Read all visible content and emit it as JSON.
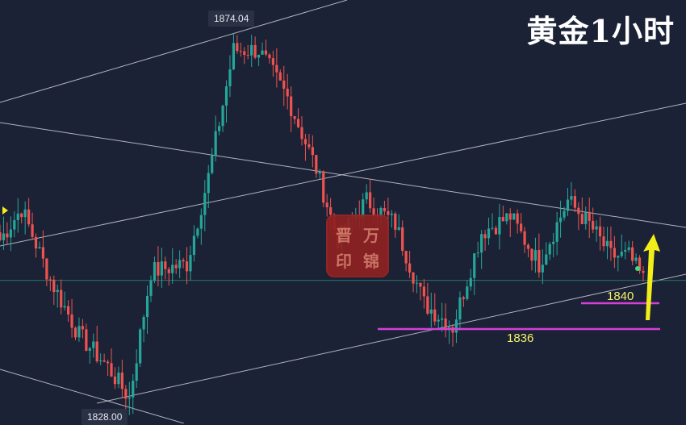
{
  "title": "黄金1小时",
  "labels": {
    "high": "1874.04",
    "low": "1828.00",
    "level_1840": "1840",
    "level_1836": "1836"
  },
  "seal_text": [
    "晋",
    "万",
    "印",
    "锦"
  ],
  "colors": {
    "background": "#1b2235",
    "up": "#26a69a",
    "down": "#ef5350",
    "trendline": "#c9ccd6",
    "support": "#d63fd8",
    "arrow": "#f2ee1a",
    "level_text": "#f4f06a"
  },
  "chart_data": {
    "type": "candlestick",
    "timeframe": "1 hour",
    "ylim": [
      1820,
      1880
    ],
    "candle_count": 180,
    "high_marker": 1874.04,
    "low_marker": 1828.0,
    "horizontal_levels": [
      1840,
      1836
    ],
    "current_price_line": 1842.9,
    "anchors": [
      {
        "i": 0,
        "p": 1848
      },
      {
        "i": 6,
        "p": 1852
      },
      {
        "i": 14,
        "p": 1843
      },
      {
        "i": 22,
        "p": 1836
      },
      {
        "i": 30,
        "p": 1832
      },
      {
        "i": 36,
        "p": 1828
      },
      {
        "i": 42,
        "p": 1844
      },
      {
        "i": 52,
        "p": 1845
      },
      {
        "i": 58,
        "p": 1856
      },
      {
        "i": 65,
        "p": 1872
      },
      {
        "i": 72,
        "p": 1872
      },
      {
        "i": 80,
        "p": 1866
      },
      {
        "i": 88,
        "p": 1857
      },
      {
        "i": 94,
        "p": 1848
      },
      {
        "i": 102,
        "p": 1853
      },
      {
        "i": 110,
        "p": 1850
      },
      {
        "i": 118,
        "p": 1840
      },
      {
        "i": 126,
        "p": 1837
      },
      {
        "i": 134,
        "p": 1849
      },
      {
        "i": 142,
        "p": 1851
      },
      {
        "i": 150,
        "p": 1845
      },
      {
        "i": 158,
        "p": 1853
      },
      {
        "i": 164,
        "p": 1850
      },
      {
        "i": 170,
        "p": 1846
      },
      {
        "i": 175,
        "p": 1846
      },
      {
        "i": 179,
        "p": 1843
      }
    ]
  }
}
